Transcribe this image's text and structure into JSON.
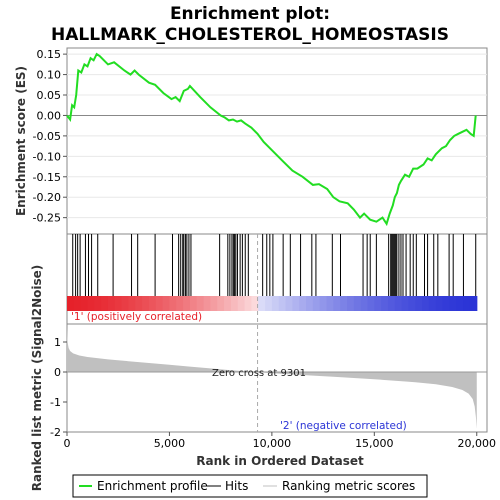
{
  "title_line1": "Enrichment plot:",
  "title_line2": "HALLMARK_CHOLESTEROL_HOMEOSTASIS",
  "legend": {
    "enrichment_label": "Enrichment profile",
    "hits_label": "Hits",
    "ranking_label": "Ranking metric scores"
  },
  "colors": {
    "enrichment": "#22dd22",
    "hits": "#000000",
    "ranking": "#c0c0c0",
    "positive": "#e6212a",
    "negative": "#2b34d6"
  },
  "chart_data": [
    {
      "type": "line",
      "ylabel": "Enrichment score (ES)",
      "xlim": [
        0,
        20500
      ],
      "ylim": [
        -0.29,
        0.165
      ],
      "yticks": [
        0.15,
        0.1,
        0.05,
        0.0,
        -0.05,
        -0.1,
        -0.15,
        -0.2,
        -0.25
      ],
      "ytick_labels": [
        "0.15",
        "0.10",
        "0.05",
        "0.00",
        "-0.05",
        "-0.10",
        "-0.15",
        "-0.20",
        "-0.25"
      ],
      "series": [
        {
          "name": "Enrichment profile",
          "x": [
            0,
            150,
            250,
            350,
            450,
            550,
            700,
            850,
            1000,
            1150,
            1300,
            1450,
            1600,
            2000,
            2300,
            2800,
            3100,
            3300,
            3500,
            4000,
            4300,
            4700,
            5100,
            5300,
            5500,
            5700,
            5900,
            6000,
            6500,
            7000,
            7500,
            7700,
            7900,
            8100,
            8300,
            8500,
            8700,
            9000,
            9300,
            9600,
            10000,
            10500,
            11000,
            11500,
            12000,
            12300,
            12700,
            13000,
            13300,
            13700,
            14000,
            14300,
            14500,
            14800,
            15100,
            15400,
            15600,
            15750,
            15900,
            16000,
            16100,
            16200,
            16300,
            16500,
            16700,
            16900,
            17100,
            17400,
            17600,
            17800,
            18000,
            18300,
            18500,
            18700,
            18900,
            19100,
            19300,
            19500,
            19700,
            19850,
            19950
          ],
          "y": [
            0.0,
            -0.01,
            0.025,
            0.02,
            0.05,
            0.11,
            0.105,
            0.125,
            0.12,
            0.14,
            0.135,
            0.15,
            0.145,
            0.125,
            0.13,
            0.11,
            0.1,
            0.11,
            0.1,
            0.08,
            0.075,
            0.055,
            0.04,
            0.045,
            0.035,
            0.06,
            0.065,
            0.072,
            0.045,
            0.02,
            0.0,
            -0.005,
            -0.012,
            -0.01,
            -0.015,
            -0.012,
            -0.02,
            -0.03,
            -0.045,
            -0.065,
            -0.085,
            -0.11,
            -0.135,
            -0.15,
            -0.17,
            -0.168,
            -0.18,
            -0.2,
            -0.21,
            -0.215,
            -0.23,
            -0.25,
            -0.24,
            -0.255,
            -0.26,
            -0.25,
            -0.265,
            -0.24,
            -0.22,
            -0.2,
            -0.19,
            -0.17,
            -0.16,
            -0.145,
            -0.15,
            -0.13,
            -0.13,
            -0.12,
            -0.105,
            -0.11,
            -0.095,
            -0.08,
            -0.075,
            -0.06,
            -0.05,
            -0.045,
            -0.04,
            -0.035,
            -0.045,
            -0.05,
            0.0
          ]
        }
      ]
    },
    {
      "type": "scatter",
      "series": [
        {
          "name": "Hits",
          "x": [
            280,
            420,
            520,
            640,
            900,
            1050,
            1200,
            1500,
            2250,
            3150,
            3450,
            4300,
            5150,
            5450,
            5550,
            5650,
            5700,
            5780,
            5850,
            5950,
            6050,
            7450,
            7850,
            7950,
            8050,
            8120,
            8180,
            8240,
            8320,
            8450,
            8560,
            8700,
            8850,
            9550,
            9750,
            9900,
            10050,
            10550,
            10900,
            11400,
            11950,
            12150,
            12950,
            13350,
            14450,
            14650,
            14800,
            15100,
            15700,
            15800,
            15850,
            15900,
            15950,
            16000,
            16050,
            16100,
            16200,
            16300,
            16400,
            16550,
            16750,
            16900,
            17050,
            17450,
            17600,
            17900,
            18100,
            18650,
            18850,
            19350,
            19950
          ]
        }
      ]
    },
    {
      "type": "area",
      "ylabel": "Ranked list metric (Signal2Noise)",
      "xlabel": "Rank in Ordered Dataset",
      "xlim": [
        0,
        20500
      ],
      "ylim": [
        -2,
        1.6
      ],
      "xticks": [
        0,
        5000,
        10000,
        15000,
        20000
      ],
      "xtick_labels": [
        "0",
        "5,000",
        "10,000",
        "15,000",
        "20,000"
      ],
      "yticks": [
        1,
        0,
        -1,
        -2
      ],
      "ytick_labels": [
        "1",
        "0",
        "-1",
        "-2"
      ],
      "zero_cross_label": "Zero cross at 9301",
      "zero_cross": 9301,
      "positive_label": "'1' (positively correlated)",
      "negative_label": "'2' (negative correlated)",
      "series": [
        {
          "name": "Ranking metric scores",
          "x": [
            0,
            30,
            80,
            150,
            300,
            600,
            1000,
            2000,
            3000,
            4000,
            5000,
            6000,
            7000,
            8000,
            9301,
            10000,
            11000,
            12000,
            13000,
            14000,
            15000,
            16000,
            17000,
            18000,
            18800,
            19300,
            19600,
            19800,
            19900,
            19960,
            20000
          ],
          "y": [
            1.5,
            1.0,
            0.8,
            0.7,
            0.62,
            0.55,
            0.5,
            0.42,
            0.36,
            0.3,
            0.24,
            0.18,
            0.12,
            0.06,
            0.0,
            -0.04,
            -0.08,
            -0.12,
            -0.16,
            -0.2,
            -0.24,
            -0.29,
            -0.34,
            -0.41,
            -0.5,
            -0.6,
            -0.72,
            -0.9,
            -1.15,
            -1.5,
            -1.9
          ]
        }
      ]
    }
  ]
}
